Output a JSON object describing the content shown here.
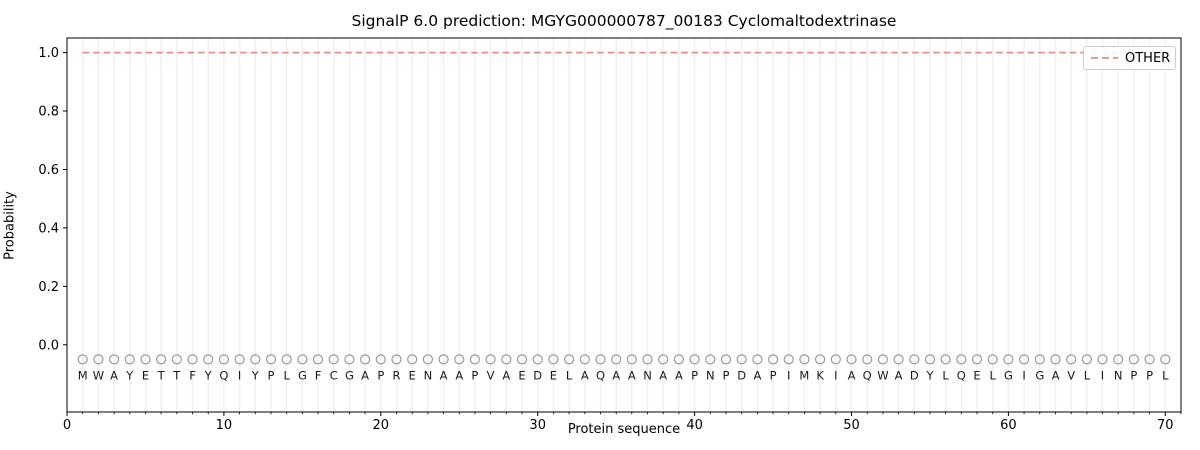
{
  "colors": {
    "other_line": "#f4877f",
    "marker_outline": "#999999",
    "residue_text": "#1a1a1a",
    "grid": "#f0f0f0",
    "spine": "#000000",
    "tick_text": "#000000",
    "legend_border": "#cccccc",
    "background": "#ffffff"
  },
  "legend": {
    "items": [
      {
        "label": "OTHER",
        "line_style": "dashed",
        "color": "#f4877f"
      }
    ],
    "position": "upper right"
  },
  "chart_data": {
    "type": "line",
    "title": "SignalP 6.0 prediction: MGYG000000787_00183 Cyclomaltodextrinase",
    "xlabel": "Protein sequence",
    "ylabel": "Probability",
    "xlim": [
      0,
      71
    ],
    "ylim": [
      -0.23,
      1.05
    ],
    "xticks": [
      0,
      10,
      20,
      30,
      40,
      50,
      60,
      70
    ],
    "yticks": [
      0.0,
      0.2,
      0.4,
      0.6,
      0.8,
      1.0
    ],
    "grid": "vertical line at every residue position, no horizontal grid",
    "legend_position": "upper right",
    "x_start": 1,
    "sequence": "MWAYETTFYQIYPLGFCGAPRENAAPVAEDELAQAANAAPNPDAPIMKIAQWADYLQELGIGAVLINPPL",
    "marker_y": -0.05,
    "letter_y": -0.105,
    "series": [
      {
        "name": "OTHER",
        "color": "#f4877f",
        "dashed": true,
        "values": [
          1.0,
          1.0,
          1.0,
          1.0,
          1.0,
          1.0,
          1.0,
          1.0,
          1.0,
          1.0,
          1.0,
          1.0,
          1.0,
          1.0,
          1.0,
          1.0,
          1.0,
          1.0,
          1.0,
          1.0,
          1.0,
          1.0,
          1.0,
          1.0,
          1.0,
          1.0,
          1.0,
          1.0,
          1.0,
          1.0,
          1.0,
          1.0,
          1.0,
          1.0,
          1.0,
          1.0,
          1.0,
          1.0,
          1.0,
          1.0,
          1.0,
          1.0,
          1.0,
          1.0,
          1.0,
          1.0,
          1.0,
          1.0,
          1.0,
          1.0,
          1.0,
          1.0,
          1.0,
          1.0,
          1.0,
          1.0,
          1.0,
          1.0,
          1.0,
          1.0,
          1.0,
          1.0,
          1.0,
          1.0,
          1.0,
          1.0,
          1.0,
          1.0,
          1.0,
          1.0
        ]
      }
    ]
  }
}
